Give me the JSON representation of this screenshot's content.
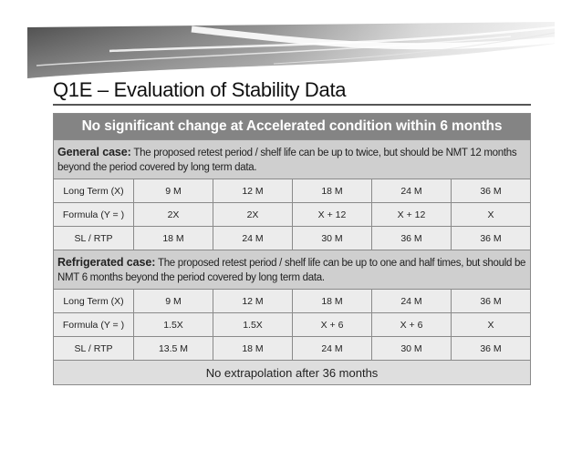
{
  "slide": {
    "title": "Q1E – Evaluation of Stability Data"
  },
  "table": {
    "header": "No significant change at Accelerated condition within 6 months",
    "general": {
      "label": "General case:",
      "text": "The proposed retest period / shelf life can be up to twice, but should be NMT 12 months beyond the period covered by long term data.",
      "rows": [
        {
          "label": "Long Term (X)",
          "cells": [
            "9 M",
            "12 M",
            "18 M",
            "24 M",
            "36 M"
          ]
        },
        {
          "label": "Formula (Y = )",
          "cells": [
            "2X",
            "2X",
            "X + 12",
            "X + 12",
            "X"
          ]
        },
        {
          "label": "SL / RTP",
          "cells": [
            "18 M",
            "24 M",
            "30 M",
            "36 M",
            "36 M"
          ]
        }
      ]
    },
    "refrigerated": {
      "label": "Refrigerated case:",
      "text": "The proposed retest period / shelf life can be up to one and half times, but should be NMT 6 months beyond the period covered by long term data.",
      "rows": [
        {
          "label": "Long Term (X)",
          "cells": [
            "9 M",
            "12 M",
            "18 M",
            "24 M",
            "36 M"
          ]
        },
        {
          "label": "Formula (Y = )",
          "cells": [
            "1.5X",
            "1.5X",
            "X + 6",
            "X + 6",
            "X"
          ]
        },
        {
          "label": "SL / RTP",
          "cells": [
            "13.5 M",
            "18 M",
            "24 M",
            "30 M",
            "36 M"
          ]
        }
      ]
    },
    "footer": "No extrapolation after 36 months"
  }
}
